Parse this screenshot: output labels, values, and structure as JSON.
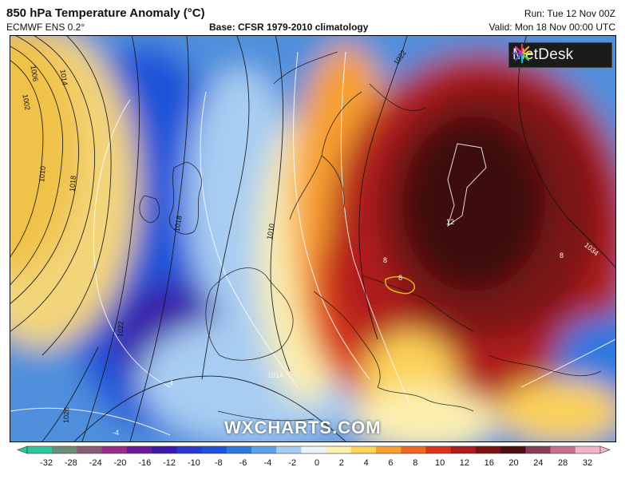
{
  "header": {
    "title": "850 hPa Temperature Anomaly (°C)",
    "model": "ECMWF ENS 0.2°",
    "base": "Base: CFSR 1979-2010 climatology",
    "run": "Run: Tue 12 Nov 00Z",
    "valid": "Valid: Mon 18 Nov 00:00 UTC"
  },
  "logo": {
    "text": "MetDesk",
    "icon": "metdesk-starburst-logo"
  },
  "watermark": "WXCHARTS.COM",
  "isobar_labels": [
    "1006",
    "1002",
    "1014",
    "1010",
    "1018",
    "1022",
    "1018",
    "1010",
    "1022",
    "1026",
    "1014",
    "1034"
  ],
  "isotherm_labels": [
    "12",
    "8",
    "8",
    "8",
    "-4",
    "-4"
  ],
  "colorbar": {
    "labels": [
      "-32",
      "-28",
      "-24",
      "-20",
      "-16",
      "-12",
      "-10",
      "-8",
      "-6",
      "-4",
      "-2",
      "0",
      "2",
      "4",
      "6",
      "8",
      "10",
      "12",
      "16",
      "20",
      "24",
      "28",
      "32"
    ],
    "colors": [
      "#2dc6a0",
      "#6a8c7a",
      "#8a5a7a",
      "#9a2c8a",
      "#6a1a9a",
      "#3a1aa8",
      "#2a3ad0",
      "#1f52d8",
      "#2f78e0",
      "#5ea0ec",
      "#a8cdf2",
      "#eef4fb",
      "#fbf0b0",
      "#fbd25a",
      "#f8a030",
      "#ef6a1e",
      "#d8341a",
      "#b01c1a",
      "#7a1212",
      "#4a1010",
      "#8a3b55",
      "#c4728a",
      "#f0b6c8"
    ]
  }
}
